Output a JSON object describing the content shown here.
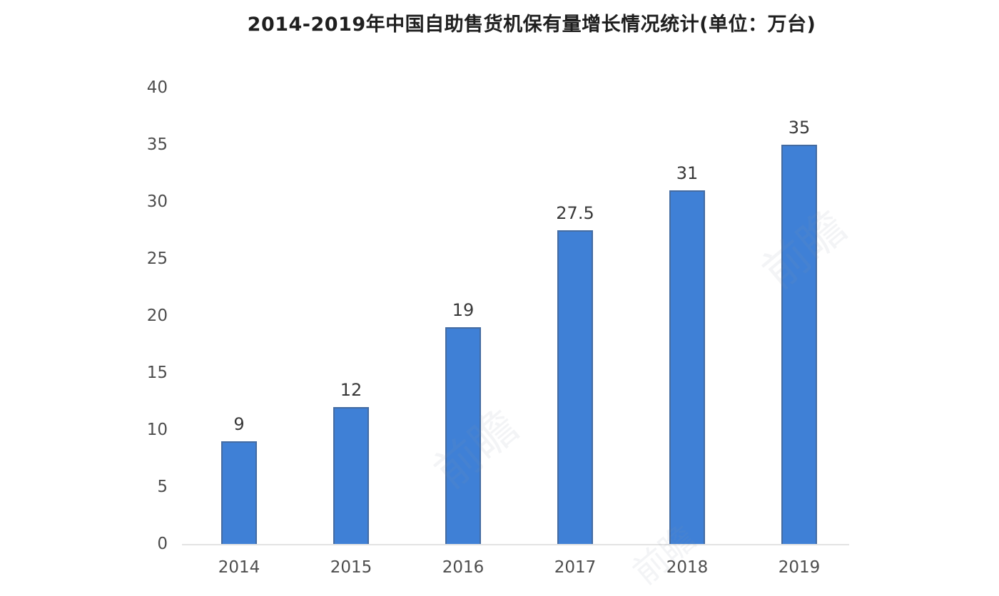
{
  "title": "2014-2019年中国自助售货机保有量增长情况统计(单位：万台)",
  "watermark_text": "前瞻",
  "colors": {
    "bar_fill": "#3f80d6",
    "bar_border": "#495363",
    "axis_line": "#e3e3e3",
    "title_text": "#1f1f1f",
    "value_label_text": "#383838",
    "tick_text": "#4d4d4d",
    "background": "#ffffff"
  },
  "chart_data": {
    "type": "bar",
    "title": "2014-2019年中国自助售货机保有量增长情况统计(单位：万台)",
    "unit": "万台",
    "categories": [
      "2014",
      "2015",
      "2016",
      "2017",
      "2018",
      "2019"
    ],
    "values": [
      9,
      12,
      19,
      27.5,
      31,
      35
    ],
    "data_labels": [
      "9",
      "12",
      "19",
      "27.5",
      "31",
      "35"
    ],
    "xlabel": "",
    "ylabel": "",
    "ylim": [
      0,
      40
    ],
    "yticks": [
      0,
      5,
      10,
      15,
      20,
      25,
      30,
      35,
      40
    ],
    "grid": false,
    "legend_position": "none"
  }
}
